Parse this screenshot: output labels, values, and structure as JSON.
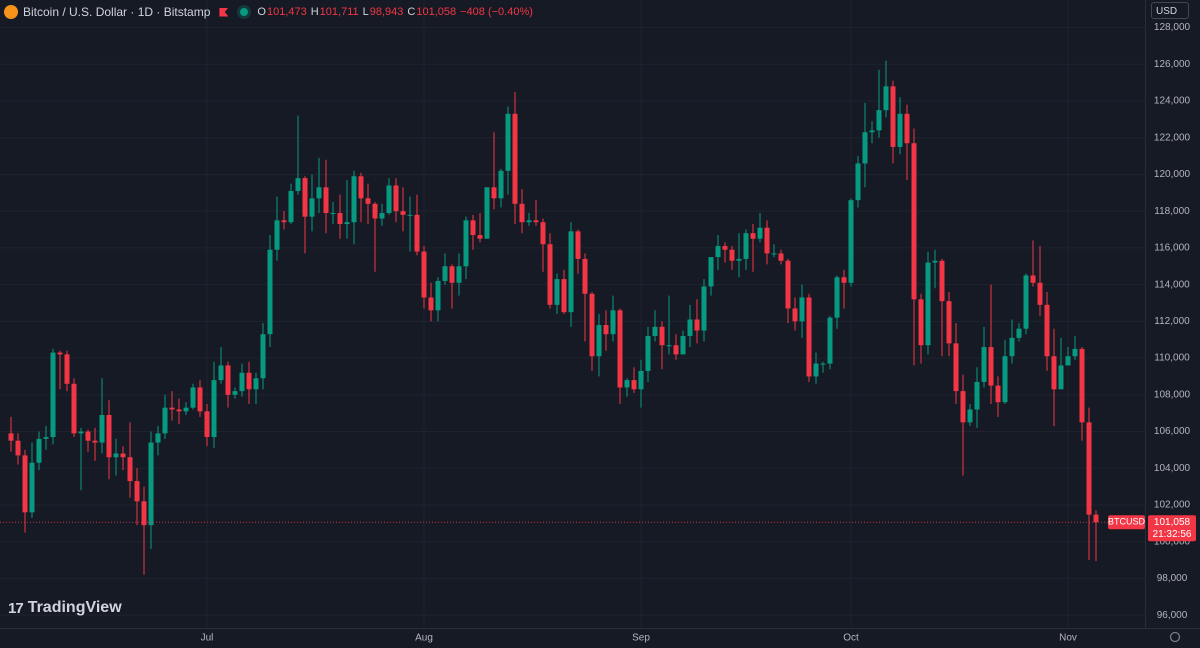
{
  "chart_data": {
    "type": "candlestick",
    "title": "Bitcoin / U.S. Dollar · 1D · Bitstamp",
    "ohlc_labels": [
      "O",
      "H",
      "L",
      "C"
    ],
    "ohlc_values": [
      "101,473",
      "101,711",
      "98,943",
      "101,058"
    ],
    "change": "−408 (−0.40%)",
    "currency": "USD",
    "symbol": "BTCUSD",
    "last_price_label": "101,058",
    "countdown": "21:32:56",
    "logo_text": "TradingView",
    "up_color": "#089981",
    "down_color": "#f23645",
    "grid": true,
    "categories": [
      null,
      null,
      null,
      null,
      null,
      null,
      null,
      null,
      null,
      null,
      null,
      null,
      null,
      null,
      null,
      null,
      null,
      null,
      null,
      null,
      null,
      null,
      null,
      null,
      null,
      null,
      null,
      null,
      "Jul",
      null,
      null,
      null,
      null,
      null,
      null,
      null,
      null,
      null,
      null,
      null,
      null,
      null,
      null,
      null,
      null,
      null,
      null,
      null,
      null,
      null,
      null,
      null,
      null,
      null,
      null,
      null,
      null,
      null,
      null,
      "Aug",
      null,
      null,
      null,
      null,
      null,
      null,
      null,
      null,
      null,
      null,
      null,
      null,
      null,
      null,
      null,
      null,
      null,
      null,
      null,
      null,
      null,
      null,
      null,
      null,
      null,
      null,
      null,
      null,
      null,
      null,
      "Sep",
      null,
      null,
      null,
      null,
      null,
      null,
      null,
      null,
      null,
      null,
      null,
      null,
      null,
      null,
      null,
      null,
      null,
      null,
      null,
      null,
      null,
      null,
      null,
      null,
      null,
      null,
      null,
      null,
      null,
      "Oct",
      null,
      null,
      null,
      null,
      null,
      null,
      null,
      null,
      null,
      null,
      null,
      null,
      null,
      null,
      null,
      null,
      null,
      null,
      null,
      null,
      null,
      null,
      null,
      null,
      null,
      null,
      null,
      null,
      null,
      null,
      "Nov",
      null,
      null,
      null,
      null
    ],
    "open": [
      105900,
      105500,
      104700,
      101600,
      104300,
      105600,
      105700,
      110300,
      110200,
      108600,
      105900,
      106000,
      105500,
      105400,
      106900,
      104600,
      104800,
      104600,
      103300,
      102200,
      100900,
      105400,
      105900,
      107300,
      107200,
      107100,
      107300,
      108400,
      107100,
      105700,
      108800,
      109600,
      108000,
      108200,
      109200,
      108300,
      108900,
      111300,
      115900,
      117500,
      117400,
      119100,
      119800,
      117700,
      118700,
      119300,
      117900,
      117900,
      117300,
      117400,
      119900,
      118700,
      118400,
      117600,
      117900,
      119400,
      118000,
      117800,
      117800,
      115800,
      113300,
      112600,
      114200,
      115000,
      114100,
      115000,
      117500,
      116700,
      116500,
      119300,
      118700,
      120200,
      123300,
      118400,
      117400,
      117500,
      117400,
      116200,
      112900,
      114300,
      112500,
      116900,
      115400,
      113500,
      110100,
      111800,
      111300,
      112600,
      108400,
      108800,
      108300,
      109300,
      111200,
      111700,
      110700,
      110700,
      110200,
      111200,
      112100,
      111500,
      113900,
      115500,
      116100,
      115900,
      115300,
      115400,
      116800,
      116500,
      117100,
      115700,
      115700,
      115300,
      112700,
      112000,
      113300,
      109000,
      109700,
      109700,
      112200,
      114400,
      114100,
      118600,
      120600,
      122300,
      122400,
      123500,
      124800,
      121500,
      123300,
      121700,
      113200,
      110700,
      115200,
      115300,
      113100,
      110800,
      108200,
      106500,
      107200,
      108700,
      110600,
      108500,
      107600,
      110100,
      111100,
      111600,
      114500,
      114100,
      112900,
      110100,
      108300,
      109600,
      110100,
      110500,
      106500,
      101473
    ],
    "high": [
      106800,
      105900,
      105000,
      105400,
      106000,
      106300,
      110500,
      110400,
      110400,
      108900,
      106200,
      106100,
      106200,
      108900,
      107700,
      105600,
      105200,
      106500,
      104000,
      103000,
      106000,
      106300,
      108000,
      108200,
      107800,
      107600,
      108600,
      108800,
      107500,
      109800,
      110600,
      109800,
      108400,
      109700,
      109800,
      109200,
      111900,
      116700,
      118800,
      118000,
      119500,
      123200,
      119900,
      120000,
      120900,
      120800,
      118500,
      118900,
      119700,
      120200,
      120100,
      119500,
      118500,
      118400,
      119800,
      119800,
      119300,
      118800,
      118900,
      116100,
      114100,
      114400,
      115700,
      115100,
      115700,
      117700,
      117800,
      117900,
      119300,
      122300,
      120300,
      123700,
      124500,
      119200,
      117900,
      118600,
      117600,
      116800,
      114600,
      114800,
      117400,
      117000,
      115700,
      113600,
      112400,
      112600,
      113400,
      112700,
      108900,
      109500,
      109900,
      111700,
      112600,
      112000,
      113400,
      111300,
      111500,
      112900,
      113200,
      114300,
      115500,
      116700,
      116300,
      116100,
      116800,
      117000,
      117300,
      117900,
      117500,
      116200,
      115900,
      115400,
      113300,
      114000,
      113500,
      110300,
      109800,
      112300,
      114500,
      114800,
      118700,
      121000,
      123900,
      122900,
      125700,
      126200,
      125100,
      124200,
      123800,
      122500,
      113500,
      115800,
      115900,
      115400,
      113600,
      111900,
      109100,
      107500,
      109500,
      111700,
      114000,
      109000,
      111000,
      112100,
      111900,
      114600,
      116400,
      116100,
      113600,
      111600,
      111100,
      110600,
      111200,
      110600,
      107300,
      101711
    ],
    "low": [
      104900,
      104200,
      100500,
      101300,
      103900,
      105000,
      105300,
      108300,
      108200,
      105700,
      102800,
      104900,
      104400,
      104800,
      103400,
      103600,
      103900,
      102400,
      100900,
      98200,
      99600,
      104700,
      105600,
      106600,
      106400,
      106900,
      107200,
      106800,
      105200,
      105100,
      108600,
      107300,
      107800,
      107900,
      107500,
      107500,
      108300,
      110600,
      115300,
      117000,
      117300,
      118900,
      115700,
      116900,
      117900,
      116800,
      117300,
      116500,
      116500,
      116200,
      117400,
      117300,
      114700,
      117200,
      117800,
      117400,
      116900,
      115800,
      115600,
      112700,
      112000,
      112000,
      114000,
      112700,
      113400,
      114300,
      115900,
      116300,
      116500,
      118100,
      118200,
      118900,
      117300,
      116800,
      117200,
      117200,
      114700,
      112700,
      112400,
      112400,
      111700,
      114600,
      110900,
      109300,
      109000,
      110400,
      110900,
      107500,
      107900,
      108100,
      107300,
      108700,
      110900,
      109400,
      110200,
      109900,
      110200,
      110600,
      110800,
      110900,
      113400,
      114800,
      115200,
      114800,
      114400,
      114800,
      114700,
      116300,
      115100,
      115500,
      115100,
      111900,
      111500,
      111100,
      108700,
      108600,
      109200,
      109400,
      111600,
      112700,
      113900,
      118200,
      119300,
      121700,
      122000,
      123100,
      120600,
      121100,
      119700,
      109600,
      109700,
      110200,
      113800,
      110100,
      110100,
      107500,
      103600,
      106300,
      106200,
      108400,
      107500,
      106800,
      107500,
      109700,
      110900,
      111300,
      113900,
      112300,
      109300,
      106300,
      108300,
      109600,
      109900,
      105500,
      99000,
      98943
    ],
    "close": [
      105500,
      104700,
      101600,
      104300,
      105600,
      105700,
      110300,
      110200,
      108600,
      105900,
      106000,
      105500,
      105400,
      106900,
      104600,
      104800,
      104600,
      103300,
      102200,
      100900,
      105400,
      105900,
      107300,
      107200,
      107100,
      107300,
      108400,
      107100,
      105700,
      108800,
      109600,
      108000,
      108200,
      109200,
      108300,
      108900,
      111300,
      115900,
      117500,
      117400,
      119100,
      119800,
      117700,
      118700,
      119300,
      117900,
      117900,
      117300,
      117400,
      119900,
      118700,
      118400,
      117600,
      117900,
      119400,
      118000,
      117800,
      117800,
      115800,
      113300,
      112600,
      114200,
      115000,
      114100,
      115000,
      117500,
      116700,
      116500,
      119300,
      118700,
      120200,
      123300,
      118400,
      117400,
      117500,
      117400,
      116200,
      112900,
      114300,
      112500,
      116900,
      115400,
      113500,
      110100,
      111800,
      111300,
      112600,
      108400,
      108800,
      108300,
      109300,
      111200,
      111700,
      110700,
      110700,
      110200,
      111200,
      112100,
      111500,
      113900,
      115500,
      116100,
      115900,
      115300,
      115400,
      116800,
      116500,
      117100,
      115700,
      115700,
      115300,
      112700,
      112000,
      113300,
      109000,
      109700,
      109700,
      112200,
      114400,
      114100,
      118600,
      120600,
      122300,
      122400,
      123500,
      124800,
      121500,
      123300,
      121700,
      113200,
      110700,
      115200,
      115300,
      113100,
      110800,
      108200,
      106500,
      107200,
      108700,
      110600,
      108500,
      107600,
      110100,
      111100,
      111600,
      114500,
      114100,
      112900,
      110100,
      108300,
      109600,
      110100,
      110500,
      106500,
      101473,
      101058
    ],
    "ylim": [
      95300,
      129500
    ],
    "yticks": [
      {
        "value": 96000,
        "label": "96,000"
      },
      {
        "value": 98000,
        "label": "98,000"
      },
      {
        "value": 100000,
        "label": "100,000"
      },
      {
        "value": 102000,
        "label": "102,000"
      },
      {
        "value": 104000,
        "label": "104,000"
      },
      {
        "value": 106000,
        "label": "106,000"
      },
      {
        "value": 108000,
        "label": "108,000"
      },
      {
        "value": 110000,
        "label": "110,000"
      },
      {
        "value": 112000,
        "label": "112,000"
      },
      {
        "value": 114000,
        "label": "114,000"
      },
      {
        "value": 116000,
        "label": "116,000"
      },
      {
        "value": 118000,
        "label": "118,000"
      },
      {
        "value": 120000,
        "label": "120,000"
      },
      {
        "value": 122000,
        "label": "122,000"
      },
      {
        "value": 124000,
        "label": "124,000"
      },
      {
        "value": 126000,
        "label": "126,000"
      },
      {
        "value": 128000,
        "label": "128,000"
      }
    ]
  }
}
